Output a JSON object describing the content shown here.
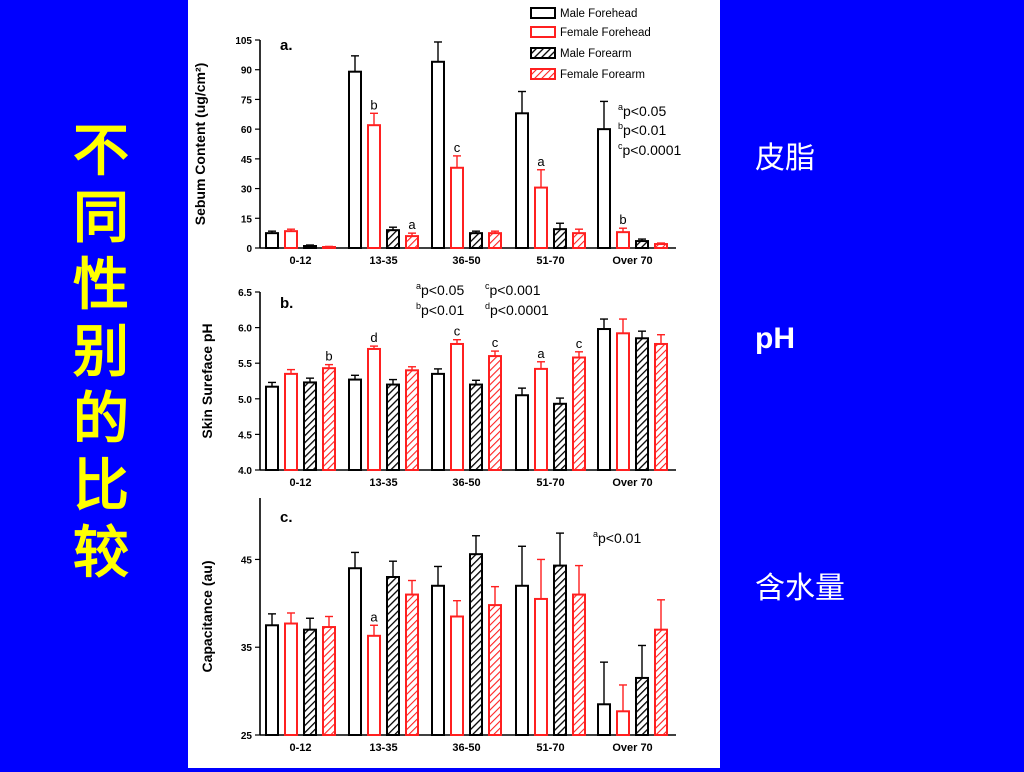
{
  "slide": {
    "vertical_title": "不同性别的比较",
    "labels": [
      "皮脂",
      "pH",
      "含水量"
    ]
  },
  "colors": {
    "background": "#0000ff",
    "title": "#ffff00",
    "label": "#ffffff",
    "male": "#000000",
    "female": "#ff2020"
  },
  "legend": [
    "Male Forehead",
    "Female Forehead",
    "Male Forearm",
    "Female Forearm"
  ],
  "chart_data": [
    {
      "type": "bar",
      "panel": "a.",
      "ylabel": "Sebum Content (ug/cm²)",
      "ylim": [
        0,
        105
      ],
      "yticks": [
        "0",
        "15",
        "30",
        "45",
        "60",
        "75",
        "90",
        "105"
      ],
      "categories": [
        "0-12",
        "13-35",
        "36-50",
        "51-70",
        "Over 70"
      ],
      "series": [
        {
          "name": "Male Forehead",
          "values": [
            7.5,
            89,
            94,
            68,
            60
          ],
          "errors": [
            1,
            8,
            10,
            11,
            14
          ]
        },
        {
          "name": "Female Forehead",
          "values": [
            8.5,
            62,
            40.5,
            30.5,
            8
          ],
          "errors": [
            1,
            6,
            6,
            9,
            2
          ]
        },
        {
          "name": "Male Forearm",
          "values": [
            1,
            9,
            7.5,
            9.5,
            3.5
          ],
          "errors": [
            0.5,
            1.5,
            1,
            3,
            1
          ]
        },
        {
          "name": "Female Forearm",
          "values": [
            0.5,
            6,
            7.5,
            7.5,
            2
          ],
          "errors": [
            0.3,
            1.5,
            1,
            2,
            0.5
          ]
        }
      ],
      "sig_labels": {
        "Female Forehead": [
          "",
          "b",
          "c",
          "a",
          "b"
        ],
        "Female Forearm": [
          "",
          "a",
          "",
          "",
          ""
        ]
      },
      "stats": [
        "ap<0.05",
        "bp<0.01",
        "cp<0.0001"
      ]
    },
    {
      "type": "bar",
      "panel": "b.",
      "ylabel": "Skin Sureface pH",
      "ylim": [
        4.0,
        6.5
      ],
      "yticks": [
        "4.0",
        "4.5",
        "5.0",
        "5.5",
        "6.0",
        "6.5"
      ],
      "categories": [
        "0-12",
        "13-35",
        "36-50",
        "51-70",
        "Over 70"
      ],
      "series": [
        {
          "name": "Male Forehead",
          "values": [
            5.17,
            5.27,
            5.35,
            5.05,
            5.98
          ],
          "errors": [
            0.06,
            0.06,
            0.07,
            0.1,
            0.14
          ]
        },
        {
          "name": "Female Forehead",
          "values": [
            5.35,
            5.7,
            5.77,
            5.42,
            5.92
          ],
          "errors": [
            0.06,
            0.04,
            0.06,
            0.1,
            0.2
          ]
        },
        {
          "name": "Male Forearm",
          "values": [
            5.23,
            5.2,
            5.2,
            4.93,
            5.85
          ],
          "errors": [
            0.06,
            0.07,
            0.06,
            0.08,
            0.1
          ]
        },
        {
          "name": "Female Forearm",
          "values": [
            5.43,
            5.4,
            5.6,
            5.58,
            5.77
          ],
          "errors": [
            0.05,
            0.05,
            0.07,
            0.08,
            0.13
          ]
        }
      ],
      "sig_labels": {
        "Female Forehead": [
          "",
          "d",
          "c",
          "a",
          ""
        ],
        "Female Forearm": [
          "b",
          "",
          "c",
          "c",
          ""
        ]
      },
      "stats": [
        "ap<0.05",
        "cp<0.001",
        "bp<0.01",
        "dp<0.0001"
      ]
    },
    {
      "type": "bar",
      "panel": "c.",
      "ylabel": "Capacitance (au)",
      "ylim": [
        25,
        52
      ],
      "yticks": [
        "25",
        "35",
        "45"
      ],
      "categories": [
        "0-12",
        "13-35",
        "36-50",
        "51-70",
        "Over 70"
      ],
      "series": [
        {
          "name": "Male Forehead",
          "values": [
            37.5,
            44,
            42,
            42,
            28.5
          ],
          "errors": [
            1.3,
            1.8,
            2.2,
            4.5,
            4.8
          ]
        },
        {
          "name": "Female Forehead",
          "values": [
            37.7,
            36.3,
            38.5,
            40.5,
            27.7
          ],
          "errors": [
            1.2,
            1.2,
            1.8,
            4.5,
            3
          ]
        },
        {
          "name": "Male Forearm",
          "values": [
            37,
            43,
            45.6,
            44.3,
            31.5
          ],
          "errors": [
            1.3,
            1.8,
            2.1,
            3.7,
            3.7
          ]
        },
        {
          "name": "Female Forearm",
          "values": [
            37.3,
            41,
            39.8,
            41,
            37
          ],
          "errors": [
            1.2,
            1.6,
            2.1,
            3.3,
            3.4
          ]
        }
      ],
      "sig_labels": {
        "Female Forehead": [
          "",
          "a",
          "",
          "",
          ""
        ]
      },
      "stats": [
        "ap<0.01"
      ]
    }
  ]
}
